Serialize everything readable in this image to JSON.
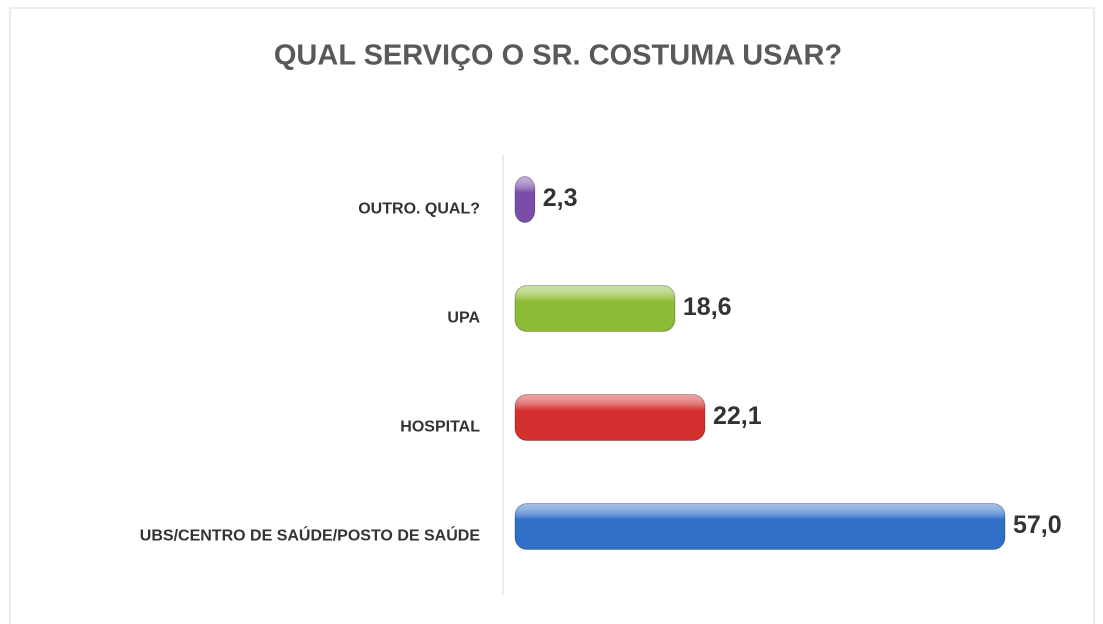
{
  "chart_data": {
    "type": "bar",
    "orientation": "horizontal",
    "title": "QUAL SERVIÇO O SR. COSTUMA USAR?",
    "categories": [
      "OUTRO. QUAL?",
      "UPA",
      "HOSPITAL",
      "UBS/CENTRO DE SAÚDE/POSTO DE SAÚDE"
    ],
    "values": [
      2.3,
      18.6,
      22.1,
      57.0
    ],
    "value_labels": [
      "2,3",
      "18,6",
      "22,1",
      "57,0"
    ],
    "colors": [
      "#7a4ea8",
      "#8cbb35",
      "#d32f2f",
      "#2f6fc6"
    ]
  }
}
